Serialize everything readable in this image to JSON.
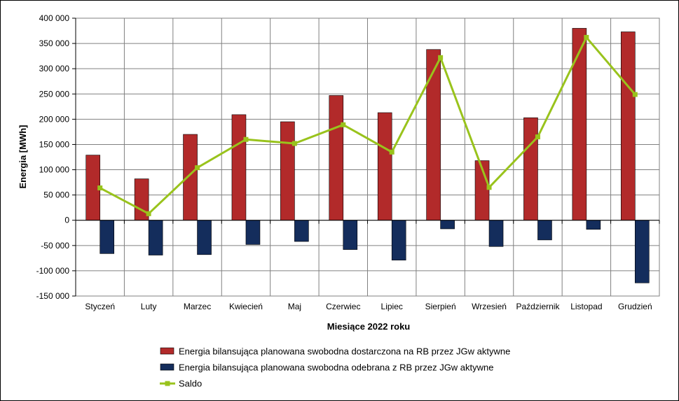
{
  "chart_data": {
    "type": "bar",
    "title": "",
    "xlabel": "Miesiące 2022 roku",
    "ylabel": "Energia [MWh]",
    "ylim": [
      -150000,
      400000
    ],
    "ytick_step": 50000,
    "ytick_labels": [
      "400 000",
      "350 000",
      "300 000",
      "250 000",
      "200 000",
      "150 000",
      "100 000",
      "50 000",
      "0",
      "-50 000",
      "-100 000",
      "-150 000"
    ],
    "grid": true,
    "legend_position": "bottom",
    "categories": [
      "Styczeń",
      "Luty",
      "Marzec",
      "Kwiecień",
      "Maj",
      "Czerwiec",
      "Lipiec",
      "Sierpień",
      "Wrzesień",
      "Październik",
      "Listopad",
      "Grudzień"
    ],
    "series": [
      {
        "name": "Energia bilansująca planowana swobodna dostarczona na RB przez JGw aktywne",
        "type": "bar",
        "color": "#b22a2a",
        "values": [
          129000,
          82000,
          170000,
          209000,
          195000,
          247000,
          213000,
          338000,
          118000,
          203000,
          380000,
          373000
        ]
      },
      {
        "name": "Energia bilansująca planowana swobodna odebrana z RB przez JGw aktywne",
        "type": "bar",
        "color": "#142d5c",
        "values": [
          -66000,
          -69000,
          -68000,
          -48000,
          -42000,
          -58000,
          -79000,
          -17000,
          -52000,
          -39000,
          -18000,
          -124000
        ]
      },
      {
        "name": "Saldo",
        "type": "line",
        "color": "#99c31c",
        "values": [
          64000,
          13000,
          104000,
          160000,
          152000,
          189000,
          135000,
          322000,
          65000,
          165000,
          362000,
          249000
        ]
      }
    ]
  }
}
